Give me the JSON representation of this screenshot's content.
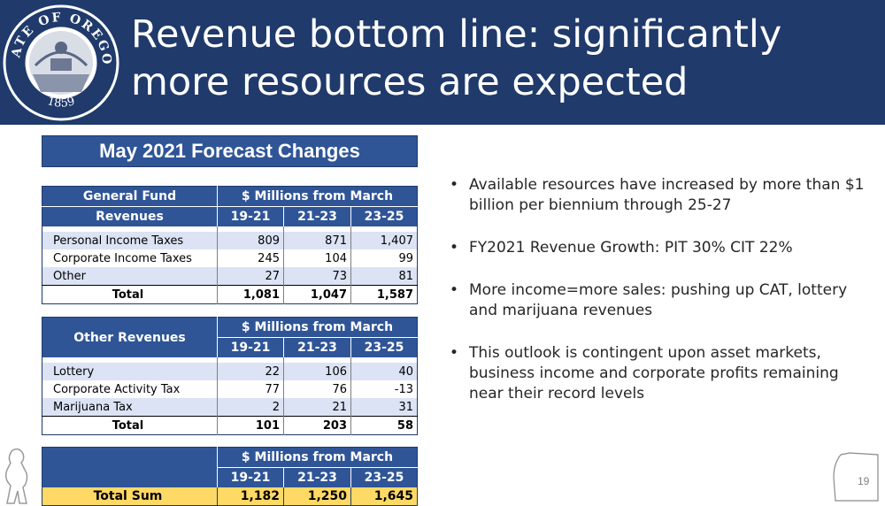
{
  "seal": {
    "top_text": "STATE OF OREGON",
    "year": "1859"
  },
  "title": "Revenue bottom line: significantly more resources are expected",
  "subtitle": "May 2021 Forecast Changes",
  "table1": {
    "row_label_line1": "General Fund",
    "row_label_line2": "Revenues",
    "group_header": "$ Millions from March",
    "years": [
      "19-21",
      "21-23",
      "23-25"
    ],
    "rows": [
      {
        "label": "Personal Income Taxes",
        "values": [
          "809",
          "871",
          "1,407"
        ]
      },
      {
        "label": "Corporate Income Taxes",
        "values": [
          "245",
          "104",
          "99"
        ]
      },
      {
        "label": "Other",
        "values": [
          "27",
          "73",
          "81"
        ]
      }
    ],
    "total": {
      "label": "Total",
      "values": [
        "1,081",
        "1,047",
        "1,587"
      ]
    }
  },
  "table2": {
    "row_label": "Other Revenues",
    "group_header": "$ Millions from March",
    "years": [
      "19-21",
      "21-23",
      "23-25"
    ],
    "rows": [
      {
        "label": "Lottery",
        "values": [
          "22",
          "106",
          "40"
        ]
      },
      {
        "label": "Corporate Activity Tax",
        "values": [
          "77",
          "76",
          "-13"
        ]
      },
      {
        "label": "Marijuana Tax",
        "values": [
          "2",
          "21",
          "31"
        ]
      }
    ],
    "total": {
      "label": "Total",
      "values": [
        "101",
        "203",
        "58"
      ]
    }
  },
  "table3": {
    "group_header": "$ Millions from March",
    "years": [
      "19-21",
      "21-23",
      "23-25"
    ],
    "sum": {
      "label": "Total Sum",
      "values": [
        "1,182",
        "1,250",
        "1,645"
      ]
    }
  },
  "bullets": [
    "Available resources have increased by more than $1 billion per biennium through 25-27",
    "FY2021 Revenue Growth: PIT 30%  CIT 22%",
    "More income=more sales: pushing up CAT, lottery and marijuana revenues",
    "This outlook is contingent upon asset markets, business income and corporate profits remaining near their record levels"
  ],
  "bullet_glyph": "•",
  "page_number": "19",
  "colors": {
    "header_bg": "#1f3a6b",
    "table_header": "#2f5597",
    "row_shade": "#dbe3f4",
    "sum_row": "#ffd966"
  }
}
